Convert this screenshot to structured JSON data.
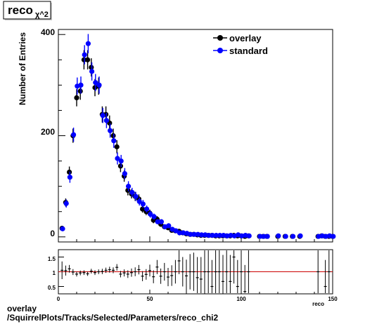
{
  "title_box": {
    "main": "reco",
    "sub": "χ^2"
  },
  "footer": {
    "line1": "overlay",
    "line2": "/SquirrelPlots/Tracks/Selected/Parameters/reco_chi2"
  },
  "chart_data": [
    {
      "type": "scatter",
      "title": "",
      "xlabel": "",
      "ylabel": "Number of Entries",
      "xlim": [
        0,
        150
      ],
      "ylim": [
        -10,
        410
      ],
      "ytick_labels": [
        "0",
        "200",
        "400"
      ],
      "legend": {
        "placement": "top-right",
        "entries": [
          "overlay",
          "standard"
        ]
      },
      "series": [
        {
          "name": "overlay",
          "color": "#000000",
          "x": [
            2,
            4,
            6,
            8,
            10,
            12,
            14,
            16,
            18,
            20,
            22,
            24,
            26,
            28,
            30,
            32,
            34,
            36,
            38,
            40,
            42,
            44,
            46,
            48,
            50,
            52,
            54,
            56,
            58,
            60,
            62,
            64,
            66,
            68,
            70,
            72,
            74,
            76,
            78,
            80,
            82,
            84,
            86,
            88,
            90,
            92,
            94,
            96,
            98,
            100,
            102,
            104,
            110,
            112,
            114,
            120,
            124,
            128,
            132,
            142,
            144,
            146,
            148,
            150
          ],
          "y": [
            17,
            68,
            128,
            200,
            275,
            288,
            350,
            350,
            335,
            295,
            298,
            242,
            242,
            225,
            200,
            178,
            140,
            120,
            92,
            85,
            80,
            75,
            55,
            50,
            47,
            33,
            35,
            25,
            20,
            18,
            13,
            12,
            11,
            8,
            6,
            5,
            5,
            4,
            3,
            3,
            3,
            3,
            2,
            2,
            2,
            2,
            2,
            3,
            2,
            2,
            1,
            2,
            1,
            1,
            1,
            1,
            1,
            1,
            1,
            1,
            2,
            1,
            1,
            1
          ],
          "yerr": [
            4,
            8,
            11,
            14,
            17,
            17,
            19,
            19,
            18,
            17,
            17,
            16,
            16,
            15,
            14,
            13,
            12,
            11,
            10,
            9,
            9,
            9,
            7,
            7,
            7,
            6,
            6,
            5,
            4,
            4,
            4,
            3,
            3,
            3,
            2,
            2,
            2,
            2,
            2,
            2,
            2,
            2,
            1,
            1,
            1,
            1,
            1,
            2,
            1,
            1,
            1,
            1,
            1,
            1,
            1,
            1,
            1,
            1,
            1,
            1,
            1,
            1,
            1,
            1
          ]
        },
        {
          "name": "standard",
          "color": "#0000ff",
          "x": [
            2,
            4,
            6,
            8,
            10,
            12,
            14,
            16,
            18,
            20,
            22,
            24,
            26,
            28,
            30,
            32,
            34,
            36,
            38,
            40,
            42,
            44,
            46,
            48,
            50,
            52,
            54,
            56,
            58,
            60,
            62,
            64,
            66,
            68,
            70,
            72,
            74,
            76,
            78,
            80,
            82,
            84,
            86,
            88,
            90,
            92,
            94,
            96,
            98,
            100,
            102,
            104,
            110,
            112,
            114,
            120,
            124,
            128,
            132,
            142,
            144,
            146,
            148,
            150
          ],
          "y": [
            16,
            66,
            118,
            202,
            298,
            300,
            360,
            382,
            327,
            305,
            300,
            240,
            230,
            210,
            190,
            155,
            150,
            125,
            100,
            88,
            80,
            70,
            65,
            55,
            45,
            40,
            30,
            30,
            20,
            22,
            15,
            12,
            8,
            8,
            7,
            5,
            5,
            5,
            4,
            4,
            3,
            3,
            3,
            3,
            3,
            2,
            3,
            2,
            4,
            2,
            3,
            2,
            1,
            1,
            1,
            2,
            1,
            1,
            2,
            1,
            2,
            1,
            2,
            1
          ],
          "yerr": [
            4,
            8,
            11,
            14,
            17,
            17,
            19,
            19,
            18,
            17,
            17,
            15,
            15,
            14,
            14,
            12,
            12,
            11,
            10,
            9,
            9,
            8,
            8,
            7,
            7,
            6,
            5,
            5,
            4,
            5,
            4,
            3,
            3,
            3,
            3,
            2,
            2,
            2,
            2,
            2,
            2,
            2,
            2,
            2,
            2,
            1,
            2,
            1,
            2,
            1,
            2,
            1,
            1,
            1,
            1,
            1,
            1,
            1,
            1,
            1,
            1,
            1,
            1,
            1
          ]
        }
      ]
    },
    {
      "type": "scatter",
      "title": "",
      "xlabel": "reco",
      "ylabel": "",
      "xlim": [
        0,
        150
      ],
      "ylim": [
        0.25,
        1.75
      ],
      "xtick_labels": [
        "0",
        "50",
        "100",
        "150"
      ],
      "ytick_labels": [
        "0.5",
        "1",
        "1.5"
      ],
      "reference_line": {
        "y": 1.0,
        "color": "#cc0000"
      },
      "series": [
        {
          "name": "",
          "color": "#000000",
          "x": [
            2,
            4,
            6,
            8,
            10,
            12,
            14,
            16,
            18,
            20,
            22,
            24,
            26,
            28,
            30,
            32,
            34,
            36,
            38,
            40,
            42,
            44,
            46,
            48,
            50,
            52,
            54,
            56,
            58,
            60,
            62,
            64,
            66,
            68,
            70,
            72,
            74,
            76,
            78,
            80,
            82,
            84,
            86,
            88,
            90,
            92,
            94,
            96,
            98,
            100,
            102,
            104,
            142,
            146,
            148
          ],
          "y": [
            1.05,
            1.04,
            1.1,
            0.99,
            0.92,
            0.96,
            0.97,
            0.93,
            1.02,
            0.97,
            1.0,
            1.01,
            1.05,
            1.07,
            1.05,
            1.15,
            0.92,
            0.96,
            0.92,
            0.97,
            1.0,
            1.07,
            0.85,
            0.91,
            1.04,
            0.83,
            1.16,
            0.85,
            1.0,
            0.82,
            0.87,
            1.0,
            1.37,
            1.0,
            0.86,
            1.0,
            1.0,
            0.8,
            0.75,
            1.0,
            1.0,
            0.5,
            1.0,
            1.0,
            0.67,
            1.0,
            0.67,
            1.5,
            0.5,
            1.0,
            0.33,
            1.0,
            1.0,
            0.5,
            1.0
          ],
          "yerr": [
            0.3,
            0.17,
            0.13,
            0.1,
            0.08,
            0.08,
            0.08,
            0.07,
            0.08,
            0.08,
            0.08,
            0.09,
            0.09,
            0.1,
            0.1,
            0.11,
            0.11,
            0.12,
            0.13,
            0.14,
            0.15,
            0.16,
            0.17,
            0.18,
            0.2,
            0.22,
            0.24,
            0.26,
            0.3,
            0.31,
            0.35,
            0.4,
            0.45,
            0.5,
            0.55,
            0.6,
            0.65,
            0.7,
            0.75,
            0.8,
            0.8,
            0.9,
            0.9,
            0.9,
            0.9,
            0.9,
            0.9,
            0.9,
            0.9,
            0.9,
            0.9,
            0.9,
            0.9,
            0.9,
            0.9
          ]
        }
      ]
    }
  ]
}
